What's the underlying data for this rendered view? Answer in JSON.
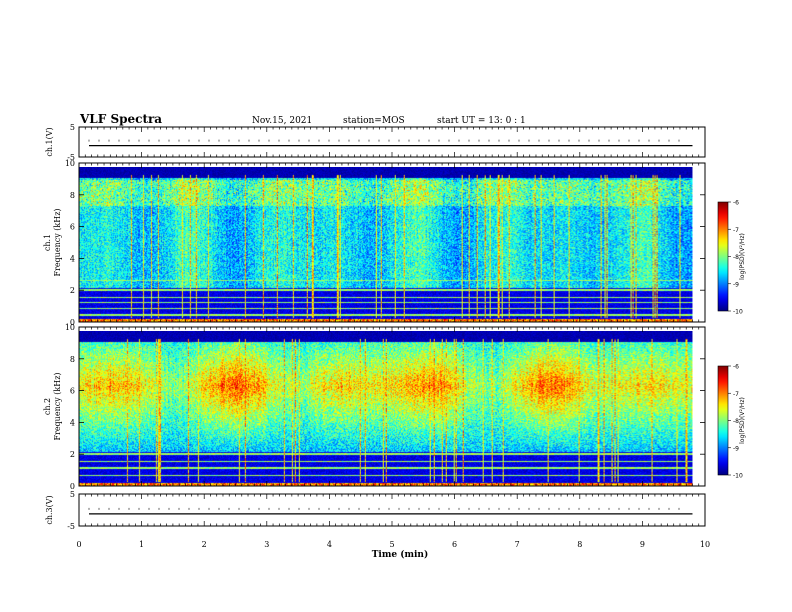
{
  "header": {
    "title": "VLF Spectra",
    "date": "Nov.15, 2021",
    "station": "station=MOS",
    "start": "start  UT  =   13: 0   : 1"
  },
  "chart_data": [
    {
      "type": "line",
      "name": "ch1-waveform",
      "ylabel": "ch.1(V)",
      "xlim": [
        0,
        10
      ],
      "ylim": [
        -5,
        5
      ],
      "yticks": [
        "5",
        "-5"
      ],
      "level": -1.2
    },
    {
      "type": "heatmap",
      "name": "ch1-spectrogram",
      "ylabel_line1": "ch.1",
      "ylabel_line2": "Frequency (kHz)",
      "xlim": [
        0,
        10
      ],
      "ylim": [
        0,
        10
      ],
      "yticks": [
        "0",
        "2",
        "4",
        "6",
        "8",
        "10"
      ],
      "data_extent_min": 9.8,
      "colorbar": {
        "label": "log(PSD)(V²/Hz)",
        "range": [
          -10,
          -6
        ],
        "ticks": [
          "-6",
          "-7",
          "-8",
          "-9",
          "-10"
        ]
      },
      "dominant_band_khz": [
        2.5,
        9.5
      ],
      "horizontal_lines_khz": [
        0.5,
        0.9,
        1.3,
        1.6,
        2.1,
        2.7
      ]
    },
    {
      "type": "heatmap",
      "name": "ch2-spectrogram",
      "ylabel_line1": "ch.2",
      "ylabel_line2": "Frequency (kHz)",
      "xlim": [
        0,
        10
      ],
      "ylim": [
        0,
        10
      ],
      "yticks": [
        "0",
        "2",
        "4",
        "6",
        "8",
        "10"
      ],
      "data_extent_min": 9.8,
      "colorbar": {
        "label": "log(PSD)(V²/Hz)",
        "range": [
          -10,
          -6
        ],
        "ticks": [
          "-6",
          "-7",
          "-8",
          "-9",
          "-10"
        ]
      },
      "dominant_band_khz": [
        5.0,
        8.0
      ],
      "horizontal_lines_khz": [
        0.7,
        1.2,
        1.6,
        2.1
      ]
    },
    {
      "type": "line",
      "name": "ch3-waveform",
      "ylabel": "ch.3(V)",
      "xlim": [
        0,
        10
      ],
      "ylim": [
        -5,
        5
      ],
      "yticks": [
        "5",
        "-5"
      ],
      "level": -1.2
    }
  ],
  "xaxis": {
    "label": "Time (min)",
    "ticks": [
      "0",
      "1",
      "2",
      "3",
      "4",
      "5",
      "6",
      "7",
      "8",
      "9",
      "10"
    ]
  }
}
